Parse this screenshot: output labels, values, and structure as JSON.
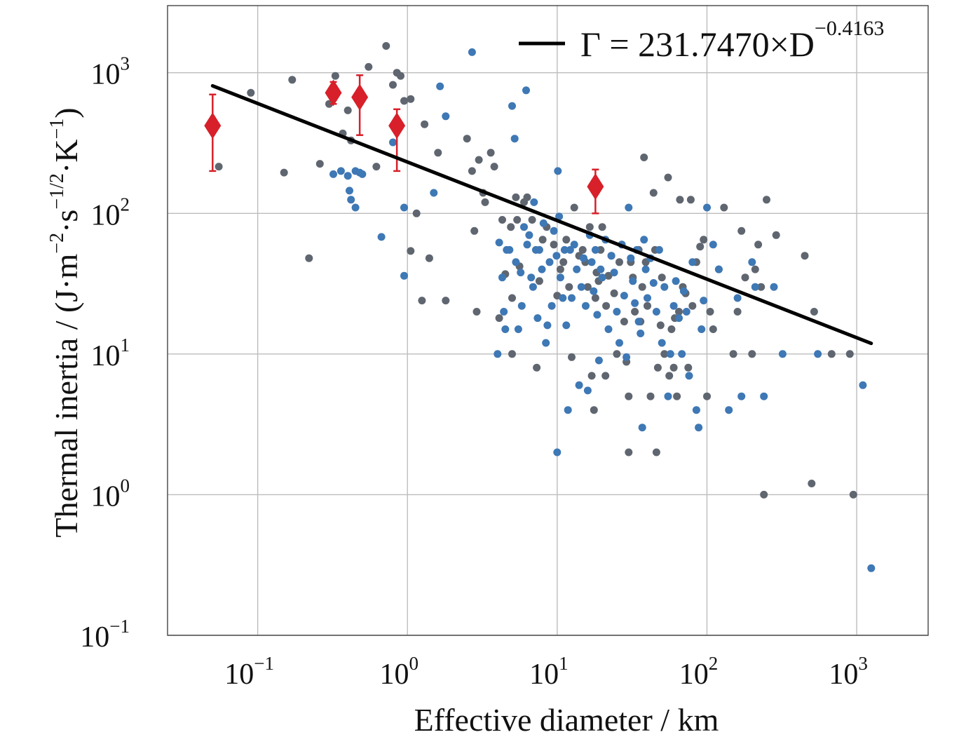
{
  "chart_data": {
    "type": "scatter",
    "title": "",
    "xlabel": "Effective diameter / km",
    "ylabel": {
      "prefix": "Thermal inertia / (J·m",
      "sup1": "−2",
      "mid1": "·s",
      "sup2": "−1/2",
      "mid2": "·K",
      "sup3": "−1",
      "suffix": ")"
    },
    "x_scale": "log",
    "y_scale": "log",
    "xlim": [
      0.025,
      3000
    ],
    "ylim": [
      0.1,
      3000
    ],
    "grid": true,
    "x_ticks": [
      {
        "base": "10",
        "exp": "−1"
      },
      {
        "base": "10",
        "exp": "0"
      },
      {
        "base": "10",
        "exp": "1"
      },
      {
        "base": "10",
        "exp": "2"
      },
      {
        "base": "10",
        "exp": "3"
      }
    ],
    "y_ticks": [
      {
        "base": "10",
        "exp": "−1"
      },
      {
        "base": "10",
        "exp": "0"
      },
      {
        "base": "10",
        "exp": "1"
      },
      {
        "base": "10",
        "exp": "2"
      },
      {
        "base": "10",
        "exp": "3"
      }
    ],
    "fit": {
      "label_pre": "Γ = 231.7470×D",
      "label_exp": "−0.4163",
      "coef": 231.747,
      "exponent": -0.4163,
      "x_range": [
        0.05,
        1250
      ],
      "color": "#000000"
    },
    "legend_position": "top-right",
    "colors": {
      "points_gray": "#5f6670",
      "points_blue": "#3e78b5",
      "highlight": "#d7202a"
    },
    "highlighted": [
      {
        "x": 0.05,
        "y": 420,
        "y_low": 200,
        "y_high": 700
      },
      {
        "x": 0.32,
        "y": 720,
        "y_low": 600,
        "y_high": 860
      },
      {
        "x": 0.48,
        "y": 670,
        "y_low": 360,
        "y_high": 960
      },
      {
        "x": 0.85,
        "y": 420,
        "y_low": 200,
        "y_high": 550
      },
      {
        "x": 18,
        "y": 155,
        "y_low": 100,
        "y_high": 205
      }
    ],
    "series": [
      {
        "color": "gray",
        "points": [
          [
            0.055,
            215
          ],
          [
            0.09,
            720
          ],
          [
            0.15,
            195
          ],
          [
            0.17,
            890
          ],
          [
            0.22,
            48
          ],
          [
            0.26,
            225
          ],
          [
            0.3,
            600
          ],
          [
            0.33,
            950
          ],
          [
            0.37,
            370
          ],
          [
            0.4,
            540
          ],
          [
            0.42,
            330
          ],
          [
            0.55,
            1100
          ],
          [
            0.62,
            215
          ],
          [
            0.72,
            1550
          ],
          [
            0.8,
            820
          ],
          [
            0.85,
            1000
          ],
          [
            0.9,
            950
          ],
          [
            0.95,
            630
          ],
          [
            1.05,
            650
          ],
          [
            1.05,
            54
          ],
          [
            1.15,
            100
          ],
          [
            1.25,
            24
          ],
          [
            1.3,
            430
          ],
          [
            1.4,
            48
          ],
          [
            1.6,
            270
          ],
          [
            1.8,
            24
          ],
          [
            2.5,
            340
          ],
          [
            2.7,
            200
          ],
          [
            2.8,
            75
          ],
          [
            3.0,
            240
          ],
          [
            2.9,
            20
          ],
          [
            3.2,
            140
          ],
          [
            3.3,
            120
          ],
          [
            3.6,
            270
          ],
          [
            3.8,
            215
          ],
          [
            4.1,
            18
          ],
          [
            4.3,
            90
          ],
          [
            4.5,
            37
          ],
          [
            5.0,
            25
          ],
          [
            4.9,
            80
          ],
          [
            5.3,
            130
          ],
          [
            5.4,
            90
          ],
          [
            5.6,
            42
          ],
          [
            5.0,
            10
          ],
          [
            6.0,
            120
          ],
          [
            6.3,
            130
          ],
          [
            6.8,
            90
          ],
          [
            7.3,
            8
          ],
          [
            7.6,
            33
          ],
          [
            8.0,
            65
          ],
          [
            8.5,
            80
          ],
          [
            9.5,
            60
          ],
          [
            10,
            26
          ],
          [
            10.5,
            40
          ],
          [
            11,
            45
          ],
          [
            11.5,
            65
          ],
          [
            12,
            30
          ],
          [
            12.5,
            9.5
          ],
          [
            13,
            110
          ],
          [
            14,
            50
          ],
          [
            14.8,
            55
          ],
          [
            15.4,
            45
          ],
          [
            16,
            30
          ],
          [
            16.5,
            80
          ],
          [
            17,
            7
          ],
          [
            17.6,
            4
          ],
          [
            18,
            25
          ],
          [
            18.3,
            38
          ],
          [
            18.9,
            33
          ],
          [
            19.5,
            55
          ],
          [
            20,
            80
          ],
          [
            21,
            7
          ],
          [
            21.2,
            22
          ],
          [
            22,
            36
          ],
          [
            23,
            50
          ],
          [
            24,
            27
          ],
          [
            25,
            10
          ],
          [
            26,
            45
          ],
          [
            27,
            60
          ],
          [
            28,
            17
          ],
          [
            29,
            8.8
          ],
          [
            30,
            5
          ],
          [
            30,
            2
          ],
          [
            31,
            45
          ],
          [
            32,
            35
          ],
          [
            33,
            20
          ],
          [
            35,
            55
          ],
          [
            36,
            17
          ],
          [
            37,
            30
          ],
          [
            38,
            250
          ],
          [
            39,
            45
          ],
          [
            40,
            22
          ],
          [
            42,
            5
          ],
          [
            44,
            140
          ],
          [
            45,
            55
          ],
          [
            46,
            2
          ],
          [
            47,
            8
          ],
          [
            49,
            16
          ],
          [
            50,
            35
          ],
          [
            52,
            10
          ],
          [
            55,
            180
          ],
          [
            56,
            7
          ],
          [
            58,
            15
          ],
          [
            60,
            8
          ],
          [
            61,
            18
          ],
          [
            63,
            5
          ],
          [
            65,
            20
          ],
          [
            66,
            125
          ],
          [
            69,
            30
          ],
          [
            72,
            27
          ],
          [
            75,
            8
          ],
          [
            78,
            125
          ],
          [
            80,
            22
          ],
          [
            85,
            45
          ],
          [
            90,
            58
          ],
          [
            95,
            65
          ],
          [
            100,
            5
          ],
          [
            105,
            20
          ],
          [
            110,
            15
          ],
          [
            120,
            40
          ],
          [
            130,
            110
          ],
          [
            150,
            10
          ],
          [
            160,
            20
          ],
          [
            170,
            75
          ],
          [
            180,
            35
          ],
          [
            200,
            10
          ],
          [
            210,
            40
          ],
          [
            220,
            60
          ],
          [
            230,
            30
          ],
          [
            240,
            1
          ],
          [
            250,
            125
          ],
          [
            290,
            70
          ],
          [
            450,
            50
          ],
          [
            500,
            1.2
          ],
          [
            520,
            20
          ],
          [
            680,
            10
          ],
          [
            900,
            10
          ],
          [
            950,
            1
          ]
        ]
      },
      {
        "color": "blue",
        "points": [
          [
            0.32,
            190
          ],
          [
            0.36,
            200
          ],
          [
            0.4,
            185
          ],
          [
            0.41,
            145
          ],
          [
            0.42,
            125
          ],
          [
            0.45,
            110
          ],
          [
            0.45,
            200
          ],
          [
            0.48,
            195
          ],
          [
            0.5,
            190
          ],
          [
            0.67,
            68
          ],
          [
            0.8,
            320
          ],
          [
            0.95,
            36
          ],
          [
            0.95,
            110
          ],
          [
            1.5,
            140
          ],
          [
            1.65,
            800
          ],
          [
            1.8,
            490
          ],
          [
            2.7,
            1400
          ],
          [
            4.0,
            10
          ],
          [
            4.1,
            62
          ],
          [
            4.3,
            35
          ],
          [
            4.4,
            20
          ],
          [
            4.5,
            15
          ],
          [
            4.6,
            55
          ],
          [
            4.8,
            55
          ],
          [
            5.0,
            580
          ],
          [
            5.2,
            340
          ],
          [
            5.3,
            45
          ],
          [
            5.5,
            15
          ],
          [
            5.7,
            38
          ],
          [
            5.8,
            22
          ],
          [
            6.0,
            80
          ],
          [
            6.2,
            750
          ],
          [
            6.3,
            60
          ],
          [
            6.5,
            70
          ],
          [
            6.7,
            35
          ],
          [
            6.9,
            30
          ],
          [
            7.0,
            120
          ],
          [
            7.2,
            55
          ],
          [
            7.4,
            18
          ],
          [
            7.6,
            55
          ],
          [
            7.9,
            40
          ],
          [
            8.1,
            85
          ],
          [
            8.4,
            12
          ],
          [
            8.6,
            16
          ],
          [
            8.9,
            45
          ],
          [
            9.2,
            22
          ],
          [
            9.5,
            75
          ],
          [
            9.9,
            50
          ],
          [
            10.0,
            2
          ],
          [
            10.1,
            200
          ],
          [
            10.3,
            95
          ],
          [
            10.5,
            35
          ],
          [
            10.9,
            25
          ],
          [
            11.2,
            55
          ],
          [
            11.5,
            16
          ],
          [
            11.8,
            4
          ],
          [
            12.2,
            55
          ],
          [
            12.5,
            25
          ],
          [
            13.0,
            60
          ],
          [
            13.5,
            40
          ],
          [
            14.0,
            6
          ],
          [
            14.5,
            30
          ],
          [
            15.0,
            48
          ],
          [
            15.5,
            22
          ],
          [
            16.0,
            5.5
          ],
          [
            16.5,
            70
          ],
          [
            17.0,
            45
          ],
          [
            17.5,
            28
          ],
          [
            18.0,
            55
          ],
          [
            18.5,
            19
          ],
          [
            19.0,
            9
          ],
          [
            19.5,
            40
          ],
          [
            20.0,
            35
          ],
          [
            21.0,
            65
          ],
          [
            22.0,
            15
          ],
          [
            23.0,
            50
          ],
          [
            24.0,
            38
          ],
          [
            25.0,
            20
          ],
          [
            26.0,
            12
          ],
          [
            27.0,
            60
          ],
          [
            28.0,
            26
          ],
          [
            29.0,
            9.5
          ],
          [
            30.0,
            110
          ],
          [
            31.0,
            48
          ],
          [
            32.0,
            33
          ],
          [
            33.0,
            23
          ],
          [
            34.0,
            55
          ],
          [
            35.0,
            17
          ],
          [
            36.0,
            14
          ],
          [
            37.0,
            3
          ],
          [
            38.0,
            65
          ],
          [
            39.0,
            40
          ],
          [
            40.0,
            25
          ],
          [
            42.0,
            48
          ],
          [
            44.0,
            32
          ],
          [
            46.0,
            20
          ],
          [
            48.0,
            55
          ],
          [
            50.0,
            12
          ],
          [
            52.0,
            30
          ],
          [
            55.0,
            5
          ],
          [
            57.0,
            10
          ],
          [
            60.0,
            22
          ],
          [
            62.0,
            33
          ],
          [
            65.0,
            18
          ],
          [
            68.0,
            10
          ],
          [
            70.0,
            28
          ],
          [
            73.0,
            20
          ],
          [
            76.0,
            7
          ],
          [
            80.0,
            45
          ],
          [
            85.0,
            4
          ],
          [
            88.0,
            3
          ],
          [
            92.0,
            15
          ],
          [
            95.0,
            24
          ],
          [
            100.0,
            110
          ],
          [
            110.0,
            60
          ],
          [
            120.0,
            40
          ],
          [
            140.0,
            4
          ],
          [
            160.0,
            25
          ],
          [
            170.0,
            5
          ],
          [
            200.0,
            45
          ],
          [
            210.0,
            30
          ],
          [
            240.0,
            5
          ],
          [
            280.0,
            30
          ],
          [
            320.0,
            10
          ],
          [
            550.0,
            10
          ],
          [
            1100,
            6
          ],
          [
            1250,
            0.3
          ]
        ]
      }
    ]
  }
}
